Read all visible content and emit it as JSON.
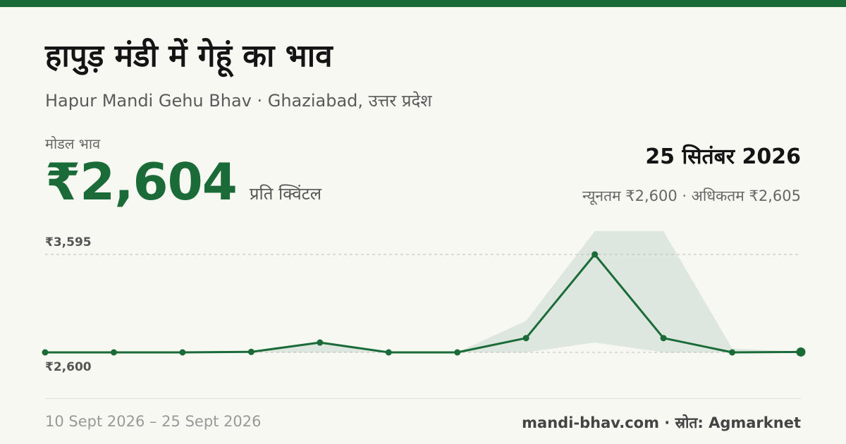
{
  "header": {
    "title": "हापुड़ मंडी में गेहूं का भाव",
    "subtitle": "Hapur Mandi Gehu Bhav · Ghaziabad, उत्तर प्रदेश"
  },
  "summary": {
    "model_label": "मोडल भाव",
    "model_price": "₹2,604",
    "unit": "प्रति क्विंटल",
    "date": "25 सितंबर 2026",
    "min_max": "न्यूनतम ₹2,600 · अधिकतम ₹2,605"
  },
  "footer": {
    "date_range": "10 Sept 2026 – 25 Sept 2026",
    "source": "mandi-bhav.com · स्रोत: Agmarknet"
  },
  "colors": {
    "accent": "#1a6b37",
    "band": "#dde7df",
    "background": "#f8f8f3"
  },
  "chart_data": {
    "type": "line",
    "grid": false,
    "ylim": [
      2600,
      3595
    ],
    "y_tick_labels": [
      "₹3,595",
      "₹2,600"
    ],
    "x": [
      1,
      2,
      3,
      4,
      5,
      6,
      7,
      8,
      9,
      10,
      11,
      12
    ],
    "series": [
      {
        "values": [
          2600,
          2600,
          2600,
          2605,
          2700,
          2600,
          2600,
          2745,
          3595,
          2745,
          2600,
          2604
        ]
      }
    ],
    "band": {
      "lower": [
        2600,
        2600,
        2600,
        2600,
        2600,
        2600,
        2600,
        2600,
        2700,
        2600,
        2600,
        2600
      ],
      "upper": [
        2600,
        2600,
        2600,
        2610,
        2710,
        2600,
        2600,
        2920,
        3840,
        3840,
        2640,
        2605
      ]
    }
  }
}
